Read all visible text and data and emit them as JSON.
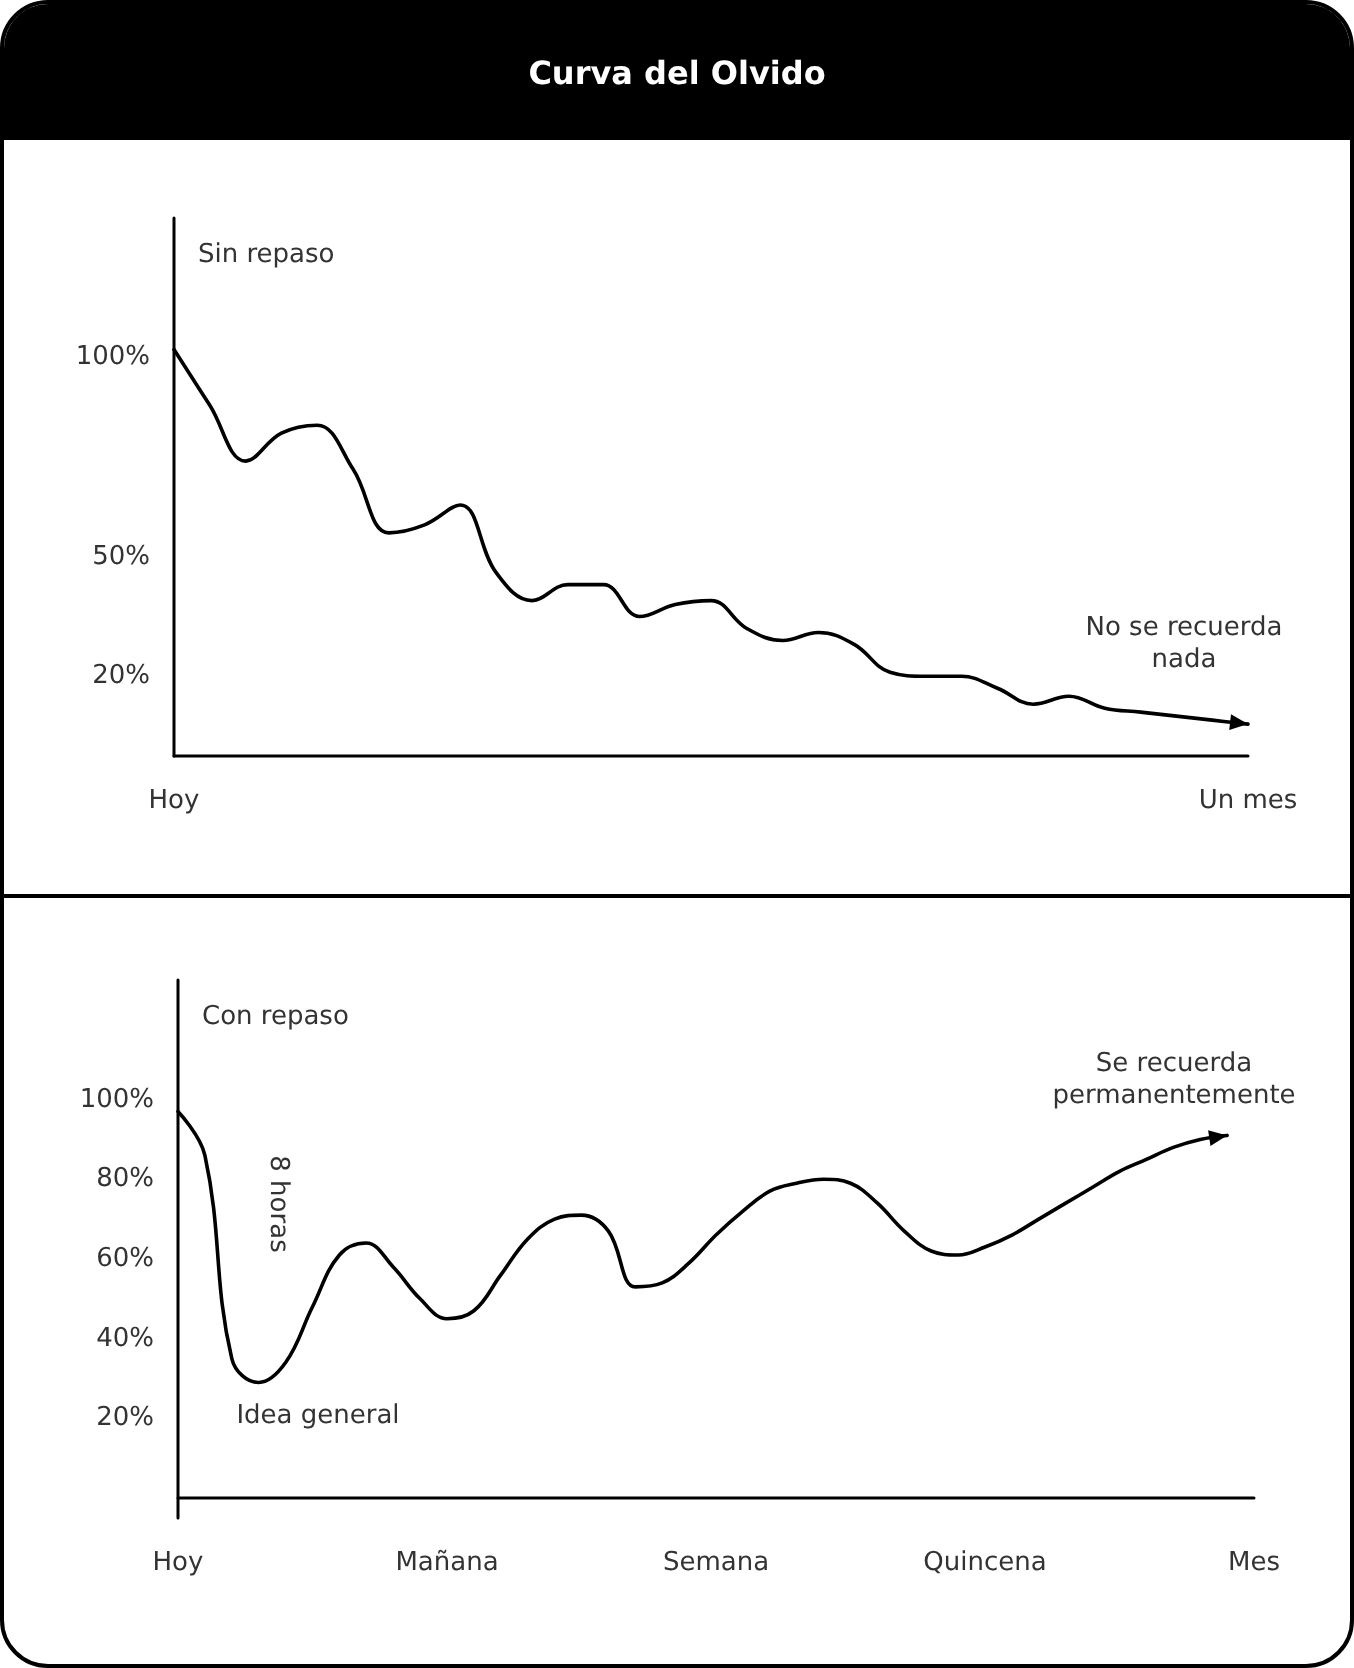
{
  "chart_data": [
    {
      "type": "line",
      "title": "Curva del Olvido",
      "categories": [
        "Hoy",
        null,
        null,
        null,
        null,
        null,
        null,
        null,
        null,
        null,
        null,
        null,
        null,
        null,
        null,
        null,
        null,
        null,
        null,
        null,
        null,
        null,
        null,
        null,
        null,
        null,
        null,
        null,
        null,
        null,
        "Un mes"
      ],
      "series": [
        {
          "name": "Sin repaso",
          "color": "#000000",
          "values": [
            102,
            88,
            74,
            81,
            83,
            72,
            56,
            58,
            63,
            46,
            39,
            43,
            43,
            35,
            38,
            39,
            32,
            29,
            31,
            28,
            21,
            20,
            20,
            17,
            13,
            15,
            12,
            11,
            10,
            9,
            8
          ]
        }
      ],
      "ylim": [
        0,
        135
      ],
      "yticks": [
        {
          "value": 20,
          "label": "20%"
        },
        {
          "value": 50,
          "label": "50%"
        },
        {
          "value": 100,
          "label": "100%"
        }
      ],
      "annotations": [
        "No se recuerda\nnada"
      ],
      "marker": "none",
      "line_style": "solid"
    },
    {
      "type": "line",
      "categories": [
        "Hoy",
        null,
        null,
        null,
        null,
        null,
        null,
        null,
        null,
        null,
        "Mañana",
        null,
        null,
        null,
        null,
        null,
        null,
        null,
        null,
        null,
        "Semana",
        null,
        null,
        null,
        null,
        null,
        null,
        null,
        null,
        null,
        "Quincena",
        null,
        null,
        null,
        null,
        null,
        null,
        null,
        null,
        null,
        "Mes"
      ],
      "series": [
        {
          "name": "Con repaso",
          "color": "#000000",
          "values": [
            97,
            86,
            35,
            29,
            34,
            48,
            61,
            64,
            58,
            50,
            45,
            47,
            56,
            65,
            70,
            71,
            67,
            53,
            54,
            59,
            66,
            72,
            77,
            79,
            80,
            79,
            74,
            67,
            62,
            61,
            63,
            66,
            70,
            74,
            78,
            82,
            85,
            88,
            90,
            91,
            null
          ]
        }
      ],
      "ylim": [
        -5,
        130
      ],
      "yticks": [
        {
          "value": 20,
          "label": "20%"
        },
        {
          "value": 40,
          "label": "40%"
        },
        {
          "value": 60,
          "label": "60%"
        },
        {
          "value": 80,
          "label": "80%"
        },
        {
          "value": 100,
          "label": "100%"
        }
      ],
      "annotations": [
        "8 horas",
        "Idea general",
        "Se recuerda\npermanentemente"
      ],
      "marker": "none",
      "line_style": "solid"
    }
  ]
}
